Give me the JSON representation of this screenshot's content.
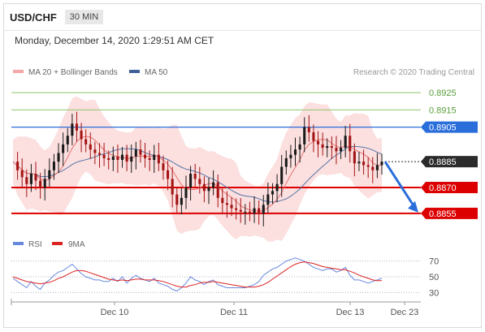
{
  "header": {
    "symbol": "USD/CHF",
    "timeframe": "30 MIN"
  },
  "datetime": "Monday, December 14, 2020 1:29:51 AM CET",
  "legend": {
    "ma20": "MA 20 + Bollinger Bands",
    "ma50": "MA 50",
    "credit": "Research © 2020 Trading Central"
  },
  "colors": {
    "up": "#1a1a1a",
    "down": "#a31515",
    "resistance": "#2a6edb",
    "support": "#dd0000",
    "target_green": "#8cc56b",
    "current": "#2b2b2b",
    "arrow": "#2a6edb",
    "bb_fill": "#fbd9d9",
    "ma20": "#e57373",
    "ma50": "#5577aa",
    "rsi": "#6688dd",
    "rsi_ma": "#dd2222"
  },
  "chart_data": [
    {
      "type": "candlestick",
      "title": "USD/CHF",
      "x_ticks": [
        "Dec 10",
        "Dec 11",
        "Dec 13",
        "Dec 23"
      ],
      "ylim": [
        0.88465,
        0.89335
      ],
      "levels": [
        {
          "value": 0.8925,
          "label": "0.8925",
          "kind": "target"
        },
        {
          "value": 0.8915,
          "label": "0.8915",
          "kind": "target"
        },
        {
          "value": 0.8905,
          "label": "0.8905",
          "kind": "resistance"
        },
        {
          "value": 0.8885,
          "label": "0.8885",
          "kind": "current"
        },
        {
          "value": 0.887,
          "label": "0.8870",
          "kind": "support"
        },
        {
          "value": 0.8855,
          "label": "0.8855",
          "kind": "support"
        }
      ],
      "forecast_arrow": {
        "from": 0.8885,
        "to": 0.8856
      },
      "price_path": [
        0.8885,
        0.888,
        0.8876,
        0.8872,
        0.8878,
        0.8874,
        0.887,
        0.8875,
        0.888,
        0.8885,
        0.889,
        0.8895,
        0.89,
        0.8907,
        0.8903,
        0.8898,
        0.8895,
        0.8892,
        0.889,
        0.8889,
        0.8887,
        0.8886,
        0.8888,
        0.8886,
        0.8889,
        0.8885,
        0.8888,
        0.8892,
        0.8889,
        0.8887,
        0.8886,
        0.8889,
        0.8884,
        0.888,
        0.8875,
        0.8866,
        0.886,
        0.8864,
        0.887,
        0.8878,
        0.8875,
        0.8872,
        0.8868,
        0.887,
        0.8873,
        0.8864,
        0.8861,
        0.886,
        0.8858,
        0.8857,
        0.8856,
        0.8856,
        0.8855,
        0.8858,
        0.8855,
        0.886,
        0.8866,
        0.8868,
        0.8872,
        0.8882,
        0.8887,
        0.8889,
        0.8892,
        0.8895,
        0.8905,
        0.8902,
        0.8897,
        0.8895,
        0.8893,
        0.8894,
        0.8893,
        0.8891,
        0.8893,
        0.89,
        0.8891,
        0.8884,
        0.8885,
        0.8883,
        0.8882,
        0.888,
        0.8883,
        0.8885
      ]
    },
    {
      "type": "line",
      "title": "RSI",
      "legend": [
        "RSI",
        "9MA"
      ],
      "yticks": [
        70,
        50,
        30
      ],
      "ylim": [
        20,
        80
      ],
      "series": [
        {
          "name": "RSI",
          "values": [
            48,
            44,
            40,
            36,
            44,
            38,
            34,
            42,
            46,
            52,
            56,
            58,
            62,
            66,
            60,
            54,
            50,
            48,
            46,
            46,
            44,
            44,
            48,
            44,
            50,
            42,
            48,
            52,
            48,
            46,
            44,
            48,
            42,
            40,
            38,
            34,
            32,
            36,
            42,
            50,
            46,
            44,
            40,
            44,
            46,
            40,
            38,
            36,
            36,
            36,
            36,
            36,
            38,
            40,
            44,
            52,
            56,
            60,
            62,
            66,
            70,
            72,
            74,
            72,
            70,
            66,
            62,
            60,
            58,
            60,
            60,
            56,
            58,
            62,
            52,
            46,
            46,
            44,
            42,
            44,
            46,
            48
          ]
        },
        {
          "name": "9MA",
          "values": [
            50,
            48,
            46,
            44,
            43,
            42,
            41,
            42,
            43,
            45,
            48,
            50,
            53,
            56,
            58,
            58,
            57,
            55,
            53,
            51,
            49,
            47,
            46,
            45,
            46,
            45,
            46,
            47,
            47,
            46,
            46,
            46,
            45,
            44,
            42,
            40,
            38,
            37,
            37,
            39,
            40,
            42,
            43,
            43,
            44,
            43,
            42,
            41,
            40,
            39,
            38,
            37,
            37,
            37,
            38,
            40,
            43,
            47,
            51,
            55,
            59,
            63,
            66,
            68,
            69,
            68,
            67,
            65,
            63,
            62,
            61,
            60,
            59,
            59,
            57,
            55,
            52,
            50,
            48,
            46,
            45,
            45
          ]
        }
      ]
    }
  ]
}
